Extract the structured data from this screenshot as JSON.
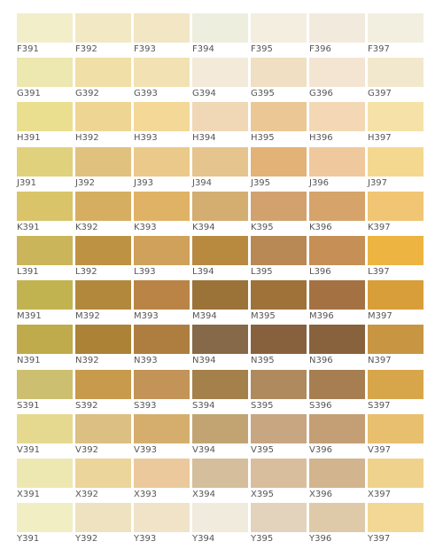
{
  "swatch_rows": [
    {
      "prefix": "F",
      "swatches": [
        {
          "code": "F391",
          "color": "#F2EECA"
        },
        {
          "code": "F392",
          "color": "#F2E8C4"
        },
        {
          "code": "F393",
          "color": "#F2E6C4"
        },
        {
          "code": "F394",
          "color": "#EEEEDE"
        },
        {
          "code": "F395",
          "color": "#F4EEE0"
        },
        {
          "code": "F396",
          "color": "#F2EBDD"
        },
        {
          "code": "F397",
          "color": "#F2EFE1"
        }
      ]
    },
    {
      "prefix": "G",
      "swatches": [
        {
          "code": "G391",
          "color": "#EDE7B0"
        },
        {
          "code": "G392",
          "color": "#F0DFA6"
        },
        {
          "code": "G393",
          "color": "#F2E2B3"
        },
        {
          "code": "G394",
          "color": "#F4EAD9"
        },
        {
          "code": "G395",
          "color": "#F0DFC3"
        },
        {
          "code": "G396",
          "color": "#F4E5D3"
        },
        {
          "code": "G397",
          "color": "#F2E8CD"
        }
      ]
    },
    {
      "prefix": "H",
      "swatches": [
        {
          "code": "H391",
          "color": "#E9DF8F"
        },
        {
          "code": "H392",
          "color": "#EED593"
        },
        {
          "code": "H393",
          "color": "#F4D898"
        },
        {
          "code": "H394",
          "color": "#F0D7B5"
        },
        {
          "code": "H395",
          "color": "#EBC795"
        },
        {
          "code": "H396",
          "color": "#F4D8B6"
        },
        {
          "code": "H397",
          "color": "#F6E2A8"
        }
      ]
    },
    {
      "prefix": "J",
      "swatches": [
        {
          "code": "J391",
          "color": "#E0D17C"
        },
        {
          "code": "J392",
          "color": "#E0C17E"
        },
        {
          "code": "J393",
          "color": "#EBC98A"
        },
        {
          "code": "J394",
          "color": "#E6C48E"
        },
        {
          "code": "J395",
          "color": "#E2B276"
        },
        {
          "code": "J396",
          "color": "#F0C89E"
        },
        {
          "code": "J397",
          "color": "#F4D890"
        }
      ]
    },
    {
      "prefix": "K",
      "swatches": [
        {
          "code": "K391",
          "color": "#DAC46A"
        },
        {
          "code": "K392",
          "color": "#D6AE62"
        },
        {
          "code": "K393",
          "color": "#E0B265"
        },
        {
          "code": "K394",
          "color": "#D4AD71"
        },
        {
          "code": "K395",
          "color": "#D1A26E"
        },
        {
          "code": "K396",
          "color": "#D6A36A"
        },
        {
          "code": "K397",
          "color": "#F0C574"
        }
      ]
    },
    {
      "prefix": "L",
      "swatches": [
        {
          "code": "L391",
          "color": "#CAB55A"
        },
        {
          "code": "L392",
          "color": "#BD9243"
        },
        {
          "code": "L393",
          "color": "#CFA15A"
        },
        {
          "code": "L394",
          "color": "#B88A40"
        },
        {
          "code": "L395",
          "color": "#B88855"
        },
        {
          "code": "L396",
          "color": "#C68F55"
        },
        {
          "code": "L397",
          "color": "#EDB442"
        }
      ]
    },
    {
      "prefix": "M",
      "swatches": [
        {
          "code": "M391",
          "color": "#C2B351"
        },
        {
          "code": "M392",
          "color": "#B2883C"
        },
        {
          "code": "M393",
          "color": "#B98445"
        },
        {
          "code": "M394",
          "color": "#9B7338"
        },
        {
          "code": "M395",
          "color": "#9E7238"
        },
        {
          "code": "M396",
          "color": "#A47242"
        },
        {
          "code": "M397",
          "color": "#D89E3A"
        }
      ]
    },
    {
      "prefix": "N",
      "swatches": [
        {
          "code": "N391",
          "color": "#BFAB4B"
        },
        {
          "code": "N392",
          "color": "#AB8236"
        },
        {
          "code": "N393",
          "color": "#AE7E40"
        },
        {
          "code": "N394",
          "color": "#866948"
        },
        {
          "code": "N395",
          "color": "#87613E"
        },
        {
          "code": "N396",
          "color": "#88623C"
        },
        {
          "code": "N397",
          "color": "#C89543"
        }
      ]
    },
    {
      "prefix": "S",
      "swatches": [
        {
          "code": "S391",
          "color": "#CCC070"
        },
        {
          "code": "S392",
          "color": "#C89A4B"
        },
        {
          "code": "S393",
          "color": "#C29458"
        },
        {
          "code": "S394",
          "color": "#A4804B"
        },
        {
          "code": "S395",
          "color": "#AE8A5E"
        },
        {
          "code": "S396",
          "color": "#A67E52"
        },
        {
          "code": "S397",
          "color": "#D8A64A"
        }
      ]
    },
    {
      "prefix": "V",
      "swatches": [
        {
          "code": "V391",
          "color": "#E4D98F"
        },
        {
          "code": "V392",
          "color": "#DCBF82"
        },
        {
          "code": "V393",
          "color": "#D5AE6E"
        },
        {
          "code": "V394",
          "color": "#C2A472"
        },
        {
          "code": "V395",
          "color": "#C8A682"
        },
        {
          "code": "V396",
          "color": "#C49E74"
        },
        {
          "code": "V397",
          "color": "#E8BF6F"
        }
      ]
    },
    {
      "prefix": "X",
      "swatches": [
        {
          "code": "X391",
          "color": "#EDE8B2"
        },
        {
          "code": "X392",
          "color": "#ECD59A"
        },
        {
          "code": "X393",
          "color": "#EBC99C"
        },
        {
          "code": "X394",
          "color": "#D4BE9C"
        },
        {
          "code": "X395",
          "color": "#D9BE9E"
        },
        {
          "code": "X396",
          "color": "#D2B48F"
        },
        {
          "code": "X397",
          "color": "#EFD38C"
        }
      ]
    },
    {
      "prefix": "Y",
      "swatches": [
        {
          "code": "Y391",
          "color": "#F2EEC4"
        },
        {
          "code": "Y392",
          "color": "#EEE2C0"
        },
        {
          "code": "Y393",
          "color": "#F0E3C8"
        },
        {
          "code": "Y394",
          "color": "#F0EBDD"
        },
        {
          "code": "Y395",
          "color": "#E3D3BC"
        },
        {
          "code": "Y396",
          "color": "#DECAA8"
        },
        {
          "code": "Y397",
          "color": "#F2D894"
        }
      ]
    }
  ]
}
